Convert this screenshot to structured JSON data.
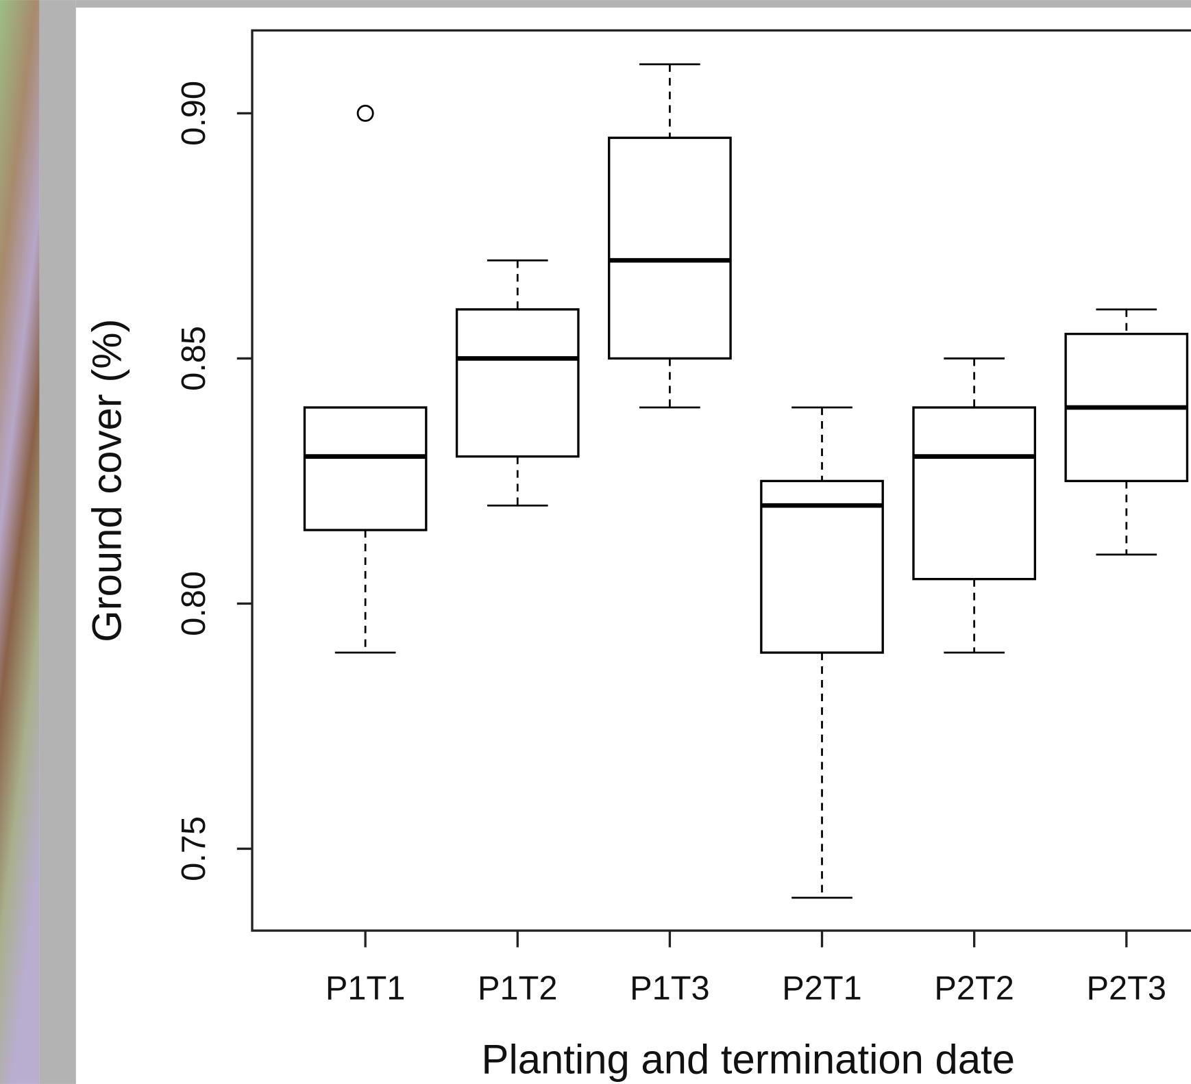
{
  "chart_data": {
    "type": "box",
    "xlabel": "Planting and termination date",
    "ylabel": "Ground cover (%)",
    "categories": [
      "P1T1",
      "P1T2",
      "P1T3",
      "P2T1",
      "P2T2",
      "P2T3"
    ],
    "boxes": [
      {
        "low": 0.79,
        "q1": 0.815,
        "median": 0.83,
        "q3": 0.84,
        "high": 0.84,
        "outliers": [
          0.9
        ]
      },
      {
        "low": 0.82,
        "q1": 0.83,
        "median": 0.85,
        "q3": 0.86,
        "high": 0.87,
        "outliers": []
      },
      {
        "low": 0.84,
        "q1": 0.85,
        "median": 0.87,
        "q3": 0.895,
        "high": 0.91,
        "outliers": []
      },
      {
        "low": 0.74,
        "q1": 0.79,
        "median": 0.82,
        "q3": 0.825,
        "high": 0.84,
        "outliers": []
      },
      {
        "low": 0.79,
        "q1": 0.805,
        "median": 0.83,
        "q3": 0.84,
        "high": 0.85,
        "outliers": []
      },
      {
        "low": 0.81,
        "q1": 0.825,
        "median": 0.84,
        "q3": 0.855,
        "high": 0.86,
        "outliers": []
      }
    ],
    "color": "#000000",
    "ylim": [
      0.7333,
      0.9169
    ],
    "yticks": [
      {
        "value": 0.9,
        "label": "0.90"
      },
      0.85,
      {
        "value": 0.8,
        "label": "0.80"
      },
      0.75
    ]
  }
}
